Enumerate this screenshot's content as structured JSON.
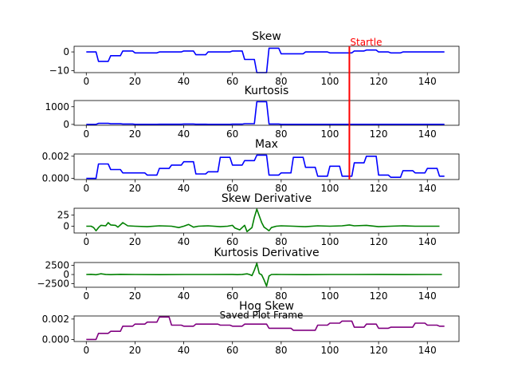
{
  "figure": {
    "caption": "Saved Plot Frame",
    "annotation": {
      "label": "Startle",
      "x": 108,
      "color": "#ff0000"
    }
  },
  "chart_data": [
    {
      "type": "line",
      "title": "Skew",
      "color": "#0000ff",
      "xlim": [
        -5,
        153
      ],
      "ylim": [
        -11,
        3
      ],
      "xticks": [
        0,
        20,
        40,
        60,
        80,
        100,
        120,
        140
      ],
      "yticks": [
        0,
        -10
      ],
      "ytick_labels": [
        "0",
        "−10"
      ],
      "grid": false,
      "series": [
        {
          "x": [
            0,
            4,
            5,
            9,
            10,
            14,
            15,
            19,
            20,
            29,
            30,
            39,
            40,
            44,
            45,
            49,
            50,
            59,
            60,
            64,
            65,
            69,
            70,
            74,
            75,
            79,
            80,
            89,
            90,
            99,
            100,
            109,
            110,
            114,
            115,
            119,
            120,
            124,
            125,
            129,
            130,
            147
          ],
          "values": [
            0,
            0,
            -5,
            -5,
            -2,
            -2,
            0.5,
            0.5,
            -0.5,
            -0.5,
            0,
            0,
            0.5,
            0.5,
            -1.5,
            -1.5,
            0,
            0,
            0.5,
            0.5,
            -4,
            -4,
            -11,
            -11,
            2,
            2,
            -1,
            -1,
            0,
            0,
            -0.5,
            -0.5,
            0.5,
            0.5,
            1,
            1,
            0,
            0,
            -0.5,
            -0.5,
            0,
            0
          ]
        }
      ]
    },
    {
      "type": "line",
      "title": "Kurtosis",
      "color": "#0000ff",
      "xlim": [
        -5,
        153
      ],
      "ylim": [
        -50,
        1350
      ],
      "xticks": [
        0,
        20,
        40,
        60,
        80,
        100,
        120,
        140
      ],
      "yticks": [
        0,
        1000
      ],
      "ytick_labels": [
        "0",
        "1000"
      ],
      "grid": false,
      "series": [
        {
          "x": [
            0,
            4,
            5,
            9,
            10,
            14,
            15,
            19,
            20,
            29,
            30,
            39,
            40,
            44,
            45,
            49,
            50,
            59,
            60,
            64,
            65,
            69,
            70,
            74,
            75,
            79,
            80,
            147
          ],
          "values": [
            0,
            0,
            60,
            60,
            35,
            35,
            20,
            20,
            5,
            5,
            10,
            10,
            20,
            20,
            10,
            10,
            5,
            5,
            15,
            15,
            40,
            40,
            1280,
            1280,
            20,
            20,
            5,
            5
          ]
        }
      ]
    },
    {
      "type": "line",
      "title": "Max",
      "color": "#0000ff",
      "xlim": [
        -5,
        153
      ],
      "ylim": [
        -0.0001,
        0.0022
      ],
      "xticks": [
        0,
        20,
        40,
        60,
        80,
        100,
        120,
        140
      ],
      "yticks": [
        0.0,
        0.002
      ],
      "ytick_labels": [
        "0.000",
        "0.002"
      ],
      "grid": false,
      "series": [
        {
          "x": [
            0,
            4,
            5,
            9,
            10,
            14,
            15,
            24,
            25,
            29,
            30,
            34,
            35,
            39,
            40,
            44,
            45,
            49,
            50,
            54,
            55,
            59,
            60,
            64,
            65,
            69,
            70,
            74,
            75,
            79,
            80,
            84,
            85,
            89,
            90,
            94,
            95,
            99,
            100,
            104,
            105,
            109,
            110,
            114,
            115,
            119,
            120,
            124,
            125,
            129,
            130,
            134,
            135,
            139,
            140,
            144,
            145,
            147
          ],
          "values": [
            0,
            0,
            0.0013,
            0.0013,
            0.0008,
            0.0008,
            0.0005,
            0.0005,
            0.0003,
            0.0003,
            0.0009,
            0.0009,
            0.0012,
            0.0012,
            0.0015,
            0.0015,
            0.0004,
            0.0004,
            0.0006,
            0.0006,
            0.0019,
            0.0019,
            0.0012,
            0.0012,
            0.0016,
            0.0016,
            0.0021,
            0.0021,
            0.0003,
            0.0003,
            0.0005,
            0.0005,
            0.0019,
            0.0019,
            0.001,
            0.001,
            0.0002,
            0.0002,
            0.0011,
            0.0011,
            0.0002,
            0.0002,
            0.0014,
            0.0014,
            0.002,
            0.002,
            0.0003,
            0.0003,
            0.0001,
            0.0001,
            0.0007,
            0.0007,
            0.0005,
            0.0005,
            0.0009,
            0.0009,
            0.0002,
            0.0002
          ]
        }
      ]
    },
    {
      "type": "line",
      "title": "Skew Derivative",
      "color": "#008000",
      "xlim": [
        -5,
        153
      ],
      "ylim": [
        -15,
        40
      ],
      "xticks": [
        0,
        20,
        40,
        60,
        80,
        100,
        120,
        140
      ],
      "yticks": [
        0,
        25
      ],
      "ytick_labels": [
        "0",
        "25"
      ],
      "grid": false,
      "series": [
        {
          "x": [
            0,
            2,
            3,
            4,
            5,
            6,
            8,
            9,
            10,
            12,
            13,
            14,
            15,
            17,
            20,
            25,
            30,
            35,
            38,
            40,
            42,
            44,
            46,
            50,
            55,
            58,
            60,
            61,
            63,
            64,
            65,
            66,
            68,
            69,
            70,
            72,
            73,
            74,
            75,
            76,
            78,
            80,
            85,
            90,
            95,
            100,
            105,
            108,
            110,
            115,
            120,
            125,
            130,
            135,
            140,
            145
          ],
          "values": [
            0,
            0,
            -3,
            -10,
            -3,
            2,
            1,
            8,
            3,
            2,
            -2,
            3,
            8,
            1,
            0,
            -1,
            1,
            0,
            -3,
            0,
            4,
            -2,
            0,
            1,
            -1,
            0,
            2,
            -4,
            -8,
            -3,
            2,
            -12,
            -3,
            20,
            38,
            8,
            -2,
            -6,
            -10,
            -3,
            0,
            1,
            0,
            -1,
            1,
            0,
            1,
            3,
            1,
            2,
            -1,
            0,
            1,
            0,
            0,
            0
          ]
        }
      ]
    },
    {
      "type": "line",
      "title": "Kurtosis Derivative",
      "color": "#008000",
      "xlim": [
        -5,
        153
      ],
      "ylim": [
        -3500,
        3300
      ],
      "xticks": [
        0,
        20,
        40,
        60,
        80,
        100,
        120,
        140
      ],
      "yticks": [
        2500,
        0,
        -2500
      ],
      "ytick_labels": [
        "2500",
        "0",
        "−2500"
      ],
      "grid": false,
      "series": [
        {
          "x": [
            0,
            2,
            4,
            6,
            8,
            10,
            14,
            20,
            30,
            40,
            50,
            60,
            62,
            64,
            66,
            67,
            68,
            69,
            70,
            71,
            72,
            73,
            74,
            75,
            76,
            78,
            80,
            90,
            100,
            110,
            120,
            130,
            140,
            146
          ],
          "values": [
            0,
            50,
            -50,
            200,
            40,
            -40,
            60,
            0,
            -30,
            20,
            0,
            40,
            -40,
            30,
            180,
            0,
            -300,
            1200,
            3100,
            300,
            -100,
            -1500,
            -3200,
            -400,
            0,
            40,
            0,
            -30,
            20,
            0,
            40,
            -20,
            0,
            0
          ]
        }
      ]
    },
    {
      "type": "line",
      "title": "Hog Skew",
      "color": "#800080",
      "xlim": [
        -5,
        153
      ],
      "ylim": [
        -0.0002,
        0.0023
      ],
      "xticks": [
        0,
        20,
        40,
        60,
        80,
        100,
        120,
        140
      ],
      "yticks": [
        0.0,
        0.002
      ],
      "ytick_labels": [
        "0.000",
        "0.002"
      ],
      "grid": false,
      "series": [
        {
          "x": [
            0,
            4,
            5,
            9,
            10,
            14,
            15,
            19,
            20,
            24,
            25,
            29,
            30,
            34,
            35,
            39,
            40,
            44,
            45,
            54,
            55,
            59,
            60,
            64,
            65,
            74,
            75,
            84,
            85,
            94,
            95,
            99,
            100,
            104,
            105,
            109,
            110,
            114,
            115,
            119,
            120,
            124,
            125,
            134,
            135,
            139,
            140,
            144,
            145,
            147
          ],
          "values": [
            0,
            0,
            0.0006,
            0.0006,
            0.0008,
            0.0008,
            0.0013,
            0.0013,
            0.0015,
            0.0015,
            0.0017,
            0.0017,
            0.0022,
            0.0022,
            0.0014,
            0.0014,
            0.0013,
            0.0013,
            0.0015,
            0.0015,
            0.0014,
            0.0014,
            0.0013,
            0.0013,
            0.0015,
            0.0015,
            0.0011,
            0.0011,
            0.0009,
            0.0009,
            0.0014,
            0.0014,
            0.0016,
            0.0016,
            0.0018,
            0.0018,
            0.0012,
            0.0012,
            0.0015,
            0.0015,
            0.0011,
            0.0011,
            0.0012,
            0.0012,
            0.0016,
            0.0016,
            0.0014,
            0.0014,
            0.0013,
            0.0013
          ]
        }
      ]
    }
  ]
}
